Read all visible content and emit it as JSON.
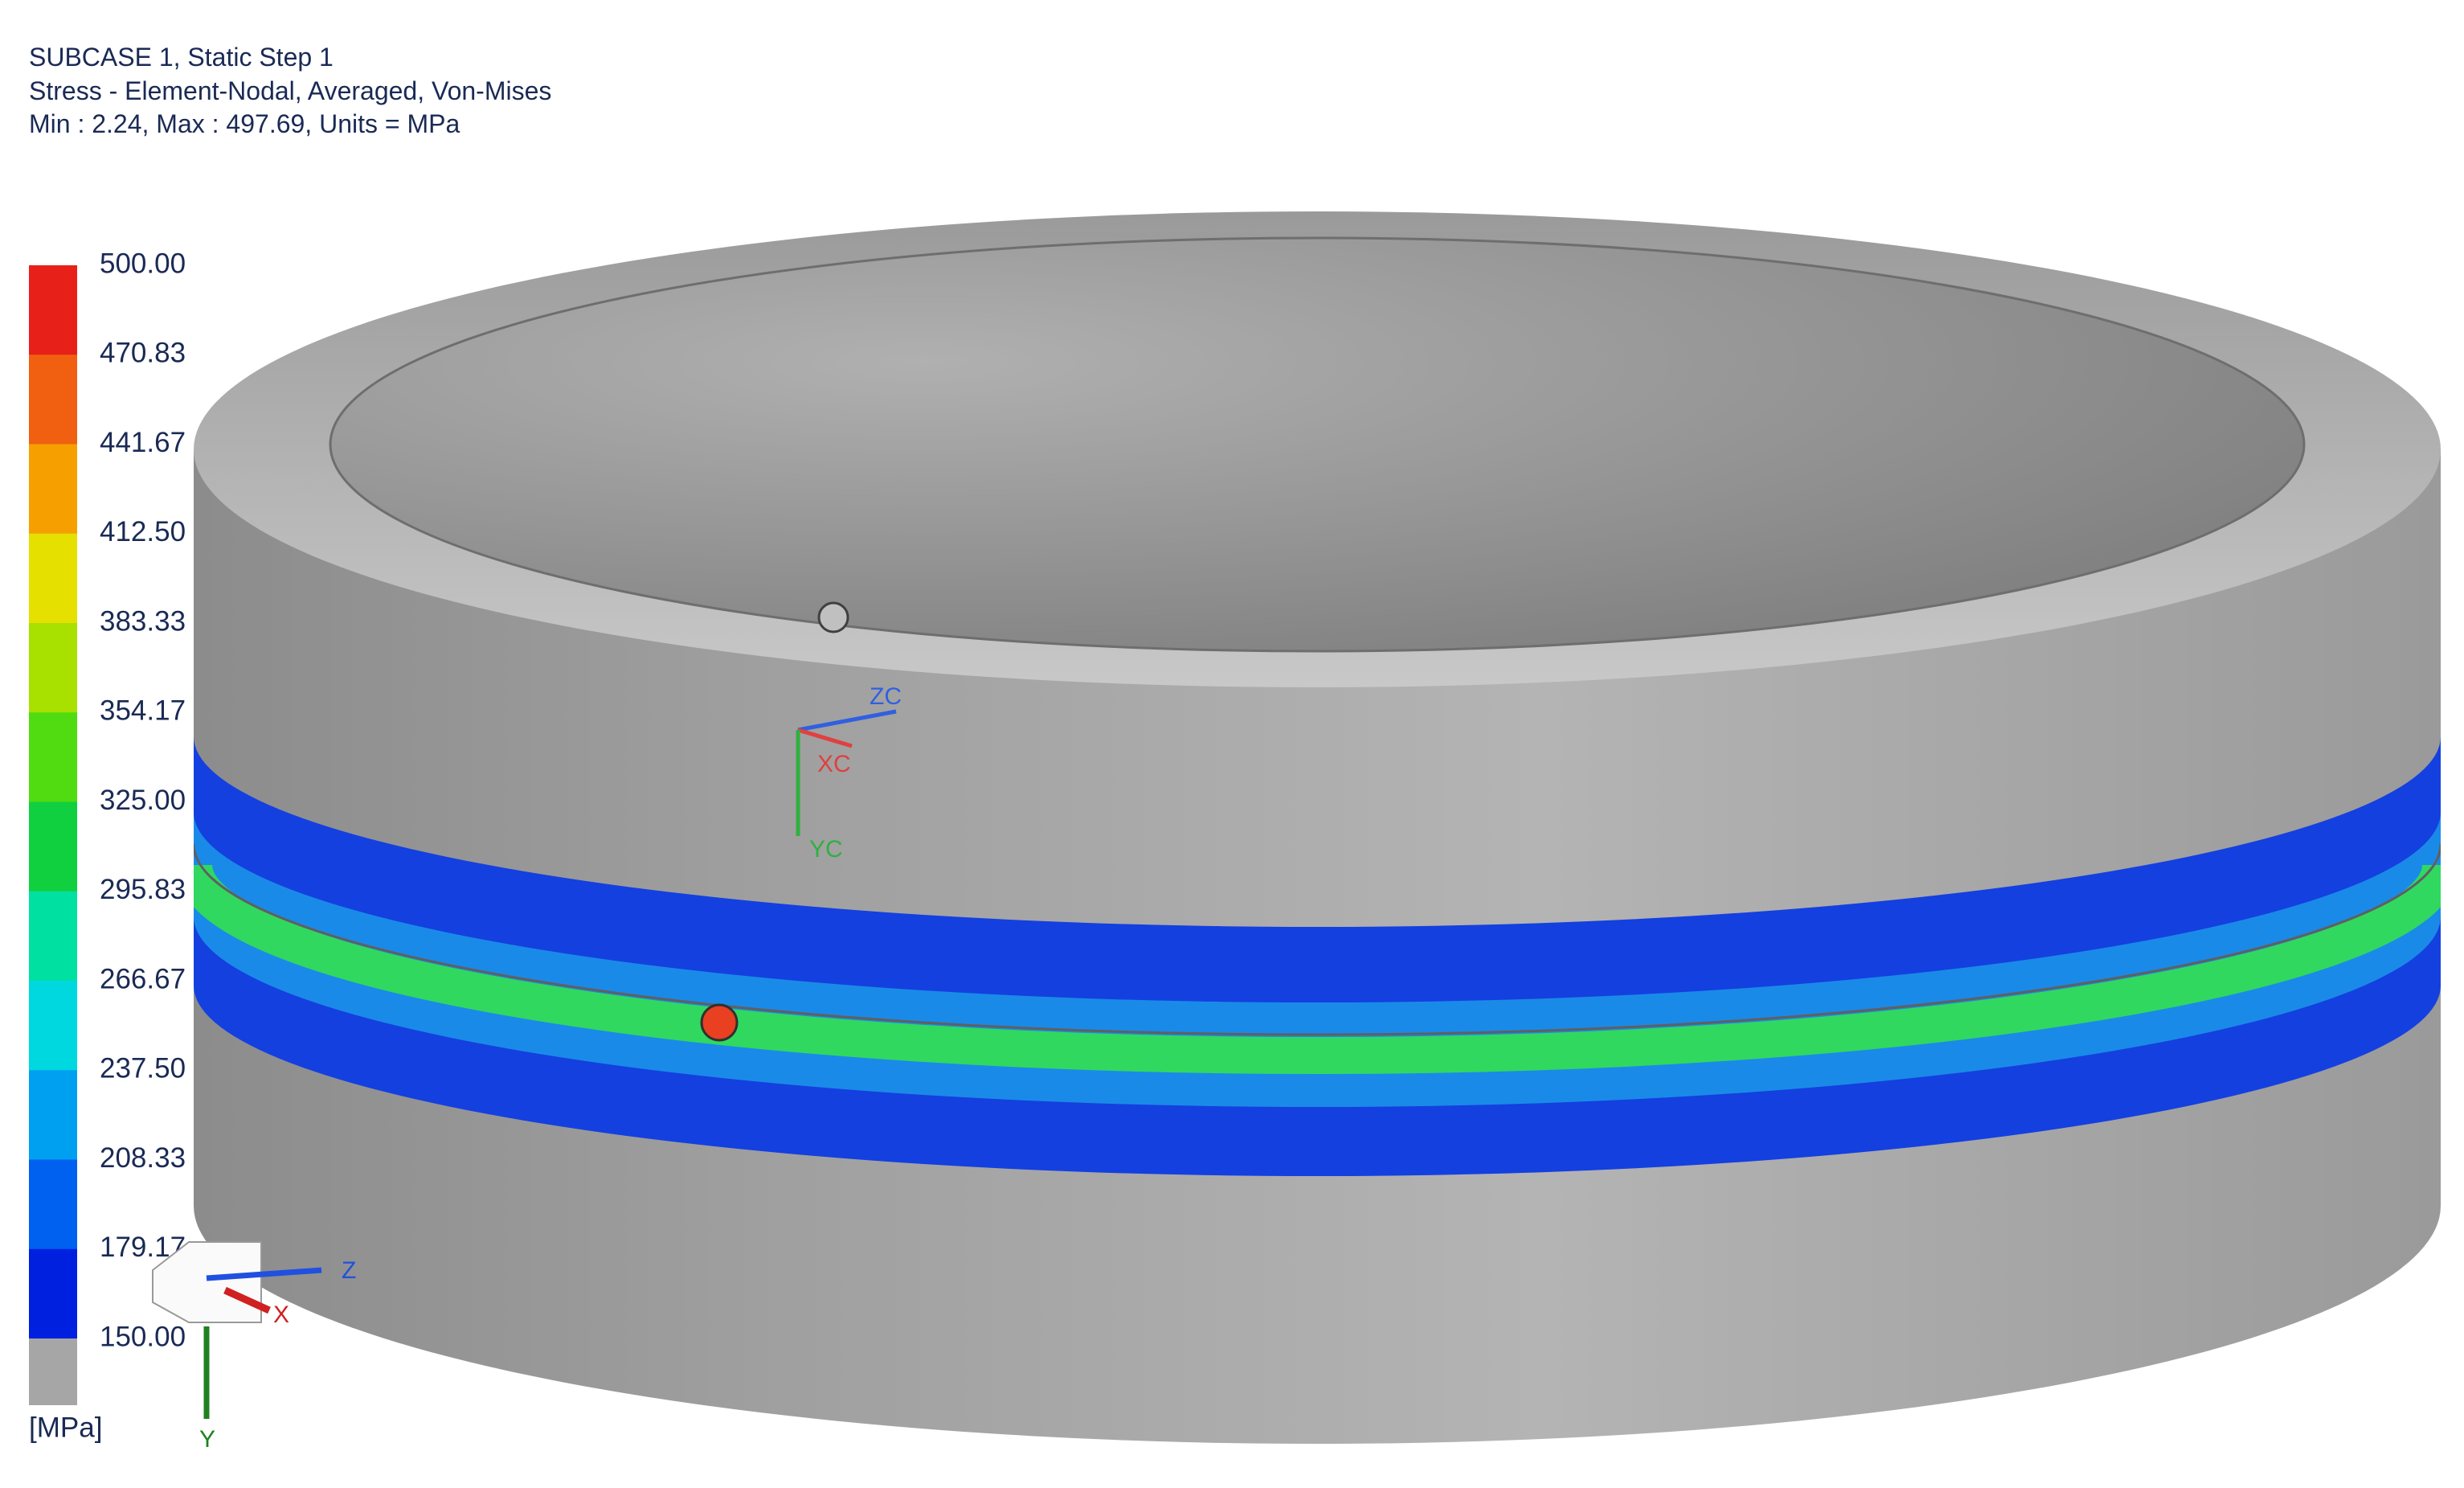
{
  "header": {
    "lines": [
      "SUBCASE 1, Static Step 1",
      "Stress - Element-Nodal, Averaged, Von-Mises",
      "Min : 2.24, Max : 497.69, Units = MPa"
    ]
  },
  "legend": {
    "labels": [
      "500.00",
      "470.83",
      "441.67",
      "412.50",
      "383.33",
      "354.17",
      "325.00",
      "295.83",
      "266.67",
      "237.50",
      "208.33",
      "179.17",
      "150.00"
    ],
    "units": "[MPa]"
  },
  "triad_work": {
    "z": "ZC",
    "x": "XC",
    "y": "YC"
  },
  "triad_abs": {
    "z": "Z",
    "x": "X",
    "y": "Y"
  }
}
